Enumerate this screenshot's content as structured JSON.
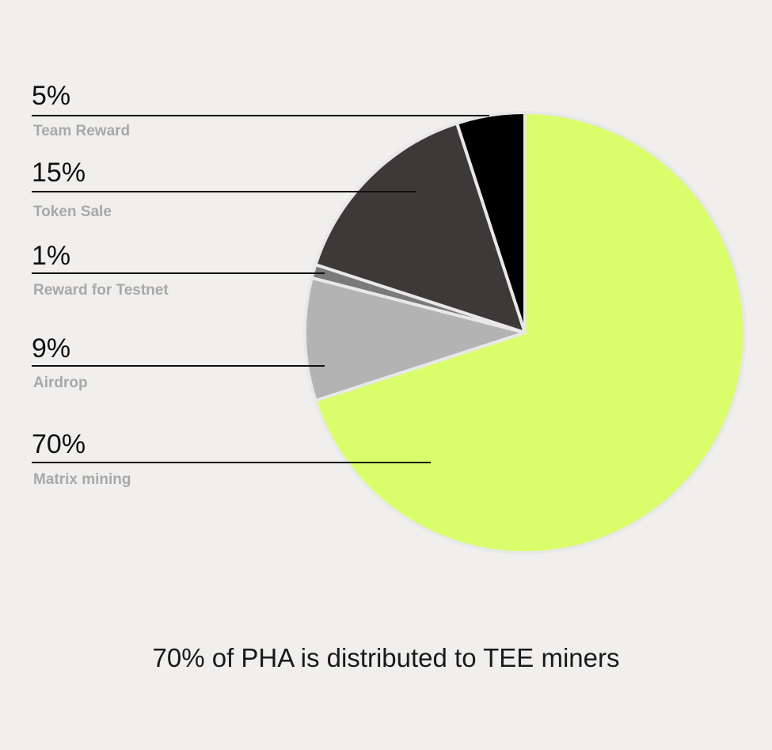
{
  "chart_data": {
    "type": "pie",
    "slices": [
      {
        "label": "Matrix mining",
        "value": 70,
        "value_label": "70%",
        "color": "#dafd6b"
      },
      {
        "label": "Airdrop",
        "value": 9,
        "value_label": "9%",
        "color": "#b3b3b3"
      },
      {
        "label": "Reward for Testnet",
        "value": 1,
        "value_label": "1%",
        "color": "#7a7a7a"
      },
      {
        "label": "Token Sale",
        "value": 15,
        "value_label": "15%",
        "color": "#3c3938"
      },
      {
        "label": "Team Reward",
        "value": 5,
        "value_label": "5%",
        "color": "#000000"
      }
    ],
    "legend_order": [
      "Team Reward",
      "Token Sale",
      "Reward for Testnet",
      "Airdrop",
      "Matrix mining"
    ],
    "start_angle": "top",
    "direction": "clockwise",
    "legend": "left"
  },
  "caption": "70% of PHA is distributed to TEE miners"
}
